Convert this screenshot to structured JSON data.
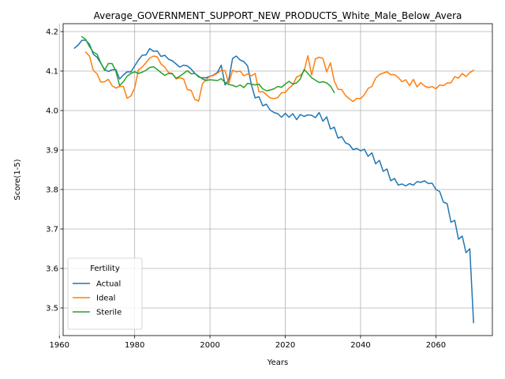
{
  "chart_data": {
    "type": "line",
    "title": "Average_GOVERNMENT_SUPPORT_NEW_PRODUCTS_White_Male_Below_Avera",
    "xlabel": "Years",
    "ylabel": "Score(1-5)",
    "xlim": [
      1961,
      2075
    ],
    "ylim": [
      3.43,
      4.22
    ],
    "xticks": [
      1960,
      1980,
      2000,
      2020,
      2040,
      2060
    ],
    "yticks": [
      3.5,
      3.6,
      3.7,
      3.8,
      3.9,
      4.0,
      4.1,
      4.2
    ],
    "ytick_labels": [
      "3.5",
      "3.6",
      "3.7",
      "3.8",
      "3.9",
      "4.0",
      "4.1",
      "4.2"
    ],
    "grid": true,
    "legend": {
      "title": "Fertility",
      "position": "lower-left"
    },
    "series": [
      {
        "name": "Actual",
        "color": "#1f77b4",
        "x": [
          1964,
          1965,
          1966,
          1967,
          1968,
          1969,
          1970,
          1971,
          1972,
          1973,
          1974,
          1975,
          1976,
          1977,
          1978,
          1979,
          1980,
          1981,
          1982,
          1983,
          1984,
          1985,
          1986,
          1987,
          1988,
          1989,
          1990,
          1991,
          1992,
          1993,
          1994,
          1995,
          1996,
          1997,
          1998,
          1999,
          2000,
          2001,
          2002,
          2003,
          2004,
          2005,
          2006,
          2007,
          2008,
          2009,
          2010,
          2011,
          2012,
          2013,
          2014,
          2015,
          2016,
          2017,
          2018,
          2019,
          2020,
          2021,
          2022,
          2023,
          2024,
          2025,
          2026,
          2027,
          2028,
          2029,
          2030,
          2031,
          2032,
          2033,
          2034,
          2035,
          2036,
          2037,
          2038,
          2039,
          2040,
          2041,
          2042,
          2043,
          2044,
          2045,
          2046,
          2047,
          2048,
          2049,
          2050,
          2051,
          2052,
          2053,
          2054,
          2055,
          2056,
          2057,
          2058,
          2059,
          2060,
          2061,
          2062,
          2063,
          2064,
          2065,
          2066,
          2067,
          2068,
          2069,
          2070
        ],
        "y": [
          4.158,
          4.166,
          4.178,
          4.178,
          4.168,
          4.143,
          4.135,
          4.12,
          4.104,
          4.099,
          4.103,
          4.104,
          4.08,
          4.09,
          4.098,
          4.098,
          4.113,
          4.128,
          4.14,
          4.141,
          4.157,
          4.15,
          4.151,
          4.137,
          4.14,
          4.13,
          4.126,
          4.118,
          4.11,
          4.115,
          4.113,
          4.105,
          4.094,
          4.085,
          4.083,
          4.083,
          4.087,
          4.09,
          4.097,
          4.115,
          4.065,
          4.078,
          4.132,
          4.138,
          4.128,
          4.124,
          4.113,
          4.065,
          4.032,
          4.035,
          4.012,
          4.016,
          4.001,
          3.995,
          3.992,
          3.983,
          3.993,
          3.983,
          3.992,
          3.977,
          3.99,
          3.985,
          3.989,
          3.988,
          3.982,
          3.995,
          3.973,
          3.984,
          3.953,
          3.958,
          3.93,
          3.934,
          3.918,
          3.914,
          3.901,
          3.904,
          3.898,
          3.902,
          3.884,
          3.893,
          3.865,
          3.874,
          3.846,
          3.852,
          3.822,
          3.828,
          3.811,
          3.814,
          3.809,
          3.815,
          3.811,
          3.82,
          3.818,
          3.822,
          3.815,
          3.816,
          3.8,
          3.795,
          3.768,
          3.764,
          3.717,
          3.722,
          3.674,
          3.682,
          3.64,
          3.65,
          3.463
        ]
      },
      {
        "name": "Ideal",
        "color": "#ff7f0e",
        "x": [
          1967,
          1968,
          1969,
          1970,
          1971,
          1972,
          1973,
          1974,
          1975,
          1976,
          1977,
          1978,
          1979,
          1980,
          1981,
          1982,
          1983,
          1984,
          1985,
          1986,
          1987,
          1988,
          1989,
          1990,
          1991,
          1992,
          1993,
          1994,
          1995,
          1996,
          1997,
          1998,
          1999,
          2000,
          2001,
          2002,
          2003,
          2004,
          2005,
          2006,
          2007,
          2008,
          2009,
          2010,
          2011,
          2012,
          2013,
          2014,
          2015,
          2016,
          2017,
          2018,
          2019,
          2020,
          2021,
          2022,
          2023,
          2024,
          2025,
          2026,
          2027,
          2028,
          2029,
          2030,
          2031,
          2032,
          2033,
          2034,
          2035,
          2036,
          2037,
          2038,
          2039,
          2040,
          2041,
          2042,
          2043,
          2044,
          2045,
          2046,
          2047,
          2048,
          2049,
          2050,
          2051,
          2052,
          2053,
          2054,
          2055,
          2056,
          2057,
          2058,
          2059,
          2060,
          2061,
          2062,
          2063,
          2064,
          2065,
          2066,
          2067,
          2068,
          2069,
          2070
        ],
        "y": [
          4.148,
          4.138,
          4.102,
          4.093,
          4.072,
          4.073,
          4.079,
          4.063,
          4.057,
          4.061,
          4.061,
          4.031,
          4.037,
          4.057,
          4.103,
          4.11,
          4.121,
          4.133,
          4.138,
          4.136,
          4.118,
          4.11,
          4.096,
          4.094,
          4.08,
          4.083,
          4.08,
          4.053,
          4.051,
          4.028,
          4.024,
          4.068,
          4.078,
          4.087,
          4.089,
          4.095,
          4.102,
          4.101,
          4.069,
          4.102,
          4.098,
          4.1,
          4.088,
          4.093,
          4.088,
          4.094,
          4.047,
          4.048,
          4.04,
          4.032,
          4.03,
          4.033,
          4.045,
          4.046,
          4.057,
          4.065,
          4.085,
          4.089,
          4.1,
          4.139,
          4.09,
          4.131,
          4.135,
          4.132,
          4.098,
          4.121,
          4.075,
          4.054,
          4.053,
          4.038,
          4.03,
          4.023,
          4.031,
          4.03,
          4.04,
          4.056,
          4.061,
          4.082,
          4.091,
          4.095,
          4.098,
          4.091,
          4.091,
          4.084,
          4.073,
          4.078,
          4.063,
          4.079,
          4.06,
          4.071,
          4.062,
          4.058,
          4.061,
          4.055,
          4.065,
          4.063,
          4.07,
          4.07,
          4.086,
          4.082,
          4.094,
          4.086,
          4.096,
          4.102
        ]
      },
      {
        "name": "Sterile",
        "color": "#2ca02c",
        "x": [
          1966,
          1967,
          1968,
          1969,
          1970,
          1971,
          1972,
          1973,
          1974,
          1975,
          1976,
          1977,
          1978,
          1979,
          1980,
          1981,
          1982,
          1983,
          1984,
          1985,
          1986,
          1987,
          1988,
          1989,
          1990,
          1991,
          1992,
          1993,
          1994,
          1995,
          1996,
          1997,
          1998,
          1999,
          2000,
          2001,
          2002,
          2003,
          2004,
          2005,
          2006,
          2007,
          2008,
          2009,
          2010,
          2011,
          2012,
          2013,
          2014,
          2015,
          2016,
          2017,
          2018,
          2019,
          2020,
          2021,
          2022,
          2023,
          2024,
          2025,
          2026,
          2027,
          2028,
          2029,
          2030,
          2031,
          2032,
          2033
        ],
        "y": [
          4.187,
          4.18,
          4.162,
          4.148,
          4.143,
          4.121,
          4.102,
          4.119,
          4.119,
          4.1,
          4.063,
          4.073,
          4.087,
          4.094,
          4.098,
          4.094,
          4.097,
          4.102,
          4.109,
          4.111,
          4.104,
          4.096,
          4.089,
          4.094,
          4.093,
          4.082,
          4.087,
          4.094,
          4.101,
          4.093,
          4.094,
          4.087,
          4.08,
          4.076,
          4.078,
          4.077,
          4.076,
          4.081,
          4.071,
          4.066,
          4.064,
          4.06,
          4.065,
          4.058,
          4.069,
          4.067,
          4.065,
          4.067,
          4.055,
          4.05,
          4.052,
          4.055,
          4.061,
          4.059,
          4.067,
          4.074,
          4.067,
          4.07,
          4.08,
          4.104,
          4.094,
          4.083,
          4.077,
          4.071,
          4.073,
          4.07,
          4.062,
          4.046
        ]
      }
    ]
  }
}
